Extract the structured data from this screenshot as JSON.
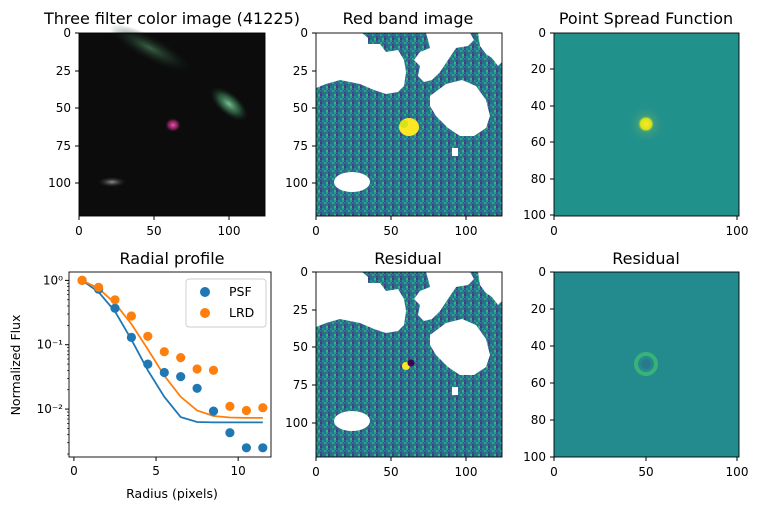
{
  "figure": {
    "panels": [
      {
        "title": "Three filter color image (41225)",
        "xticks": [
          "0",
          "50",
          "100"
        ],
        "yticks": [
          "0",
          "25",
          "50",
          "75",
          "100"
        ]
      },
      {
        "title": "Red band image",
        "xticks": [
          "0",
          "50",
          "100"
        ],
        "yticks": [
          "0",
          "25",
          "50",
          "75",
          "100"
        ]
      },
      {
        "title": "Point Spread Function",
        "xticks": [
          "0",
          "100"
        ],
        "yticks": [
          "0",
          "20",
          "40",
          "60",
          "80",
          "100"
        ]
      },
      {
        "title": "Residual",
        "xticks": [
          "0",
          "50",
          "100"
        ],
        "yticks": [
          "0",
          "25",
          "50",
          "75",
          "100"
        ]
      },
      {
        "title": "Residual",
        "xticks": [
          "0",
          "50",
          "100"
        ],
        "yticks": [
          "0",
          "20",
          "40",
          "60",
          "80",
          "100"
        ]
      }
    ],
    "colors": {
      "psf": "#1f77b4",
      "lrd": "#ff7f0e",
      "psf_bg": "#21918c",
      "psf_core": "#fde725",
      "mask": "#ffffff"
    }
  },
  "chart_data": [
    {
      "type": "scatter",
      "title": "Radial profile",
      "xlabel": "Radius (pixels)",
      "ylabel": "Normalized Flux",
      "xlim": [
        -0.3,
        12.0
      ],
      "ylim": [
        0.0018,
        1.35
      ],
      "yscale": "log",
      "xticks": [
        "0",
        "5",
        "10"
      ],
      "yticks": [
        "10⁰",
        "10⁻¹",
        "10⁻²"
      ],
      "legend": {
        "placement": "top-right",
        "entries": [
          "PSF",
          "LRD"
        ]
      },
      "series": [
        {
          "name": "PSF",
          "marker": "points",
          "x": [
            0.5,
            1.5,
            2.5,
            3.5,
            4.5,
            5.5,
            6.5,
            7.5,
            8.5,
            9.5,
            10.5,
            11.5
          ],
          "y": [
            1.0,
            0.73,
            0.37,
            0.13,
            0.05,
            0.037,
            0.032,
            0.021,
            0.0093,
            0.0043,
            0.0025,
            0.0025
          ]
        },
        {
          "name": "LRD",
          "marker": "points",
          "x": [
            0.5,
            1.5,
            2.5,
            3.5,
            4.5,
            5.5,
            6.5,
            7.5,
            8.5,
            9.5,
            10.5,
            11.5
          ],
          "y": [
            1.0,
            0.78,
            0.5,
            0.28,
            0.135,
            0.078,
            0.063,
            0.042,
            0.04,
            0.011,
            0.0095,
            0.0105
          ]
        },
        {
          "marker": "line",
          "color": "psf",
          "x": [
            0.5,
            1.5,
            2.5,
            3.5,
            4.5,
            5.5,
            6.5,
            7.5,
            8.5,
            9.5,
            10.5,
            11.5
          ],
          "y": [
            1.0,
            0.66,
            0.33,
            0.12,
            0.04,
            0.0155,
            0.0075,
            0.0063,
            0.0062,
            0.0062,
            0.0062,
            0.0062
          ]
        },
        {
          "marker": "line",
          "color": "lrd",
          "x": [
            0.5,
            1.5,
            2.5,
            3.5,
            4.5,
            5.5,
            6.5,
            7.5,
            8.5,
            9.5,
            10.5,
            11.5
          ],
          "y": [
            1.0,
            0.75,
            0.44,
            0.21,
            0.085,
            0.033,
            0.0155,
            0.0095,
            0.0078,
            0.0074,
            0.0073,
            0.0073
          ]
        }
      ]
    }
  ]
}
